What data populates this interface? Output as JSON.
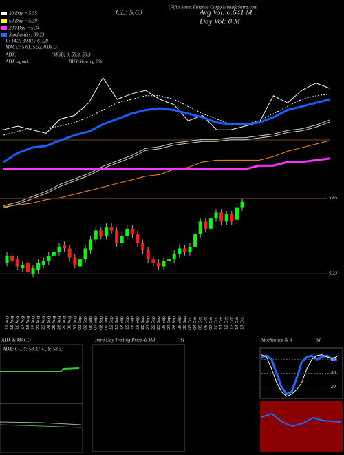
{
  "chart_data": [
    {
      "type": "line",
      "title": "(Fifth Street Finance Corp) MunafaSutra.com",
      "ylim": [
        0,
        100
      ],
      "series": [
        {
          "color": "#ffffff",
          "style": "solid",
          "values": [
            43,
            45,
            43,
            41,
            49,
            51,
            58,
            72,
            60,
            63,
            65,
            60,
            57,
            48,
            51,
            43,
            43,
            45,
            47,
            62,
            58,
            65,
            69,
            66
          ]
        },
        {
          "color": "#ffffff",
          "style": "dotted",
          "values": [
            40,
            42,
            44,
            44,
            45,
            47,
            50,
            54,
            58,
            60,
            62,
            62,
            60,
            56,
            52,
            49,
            46,
            46,
            48,
            52,
            56,
            60,
            62,
            63
          ]
        },
        {
          "color": "#1560ff",
          "style": "thick",
          "values": [
            25,
            30,
            33,
            34,
            37,
            40,
            42,
            46,
            49,
            52,
            54,
            55,
            54,
            52,
            50,
            47,
            46,
            46,
            47,
            50,
            54,
            56,
            58,
            60
          ]
        },
        {
          "color": "#cccccc",
          "style": "double",
          "values": [
            0,
            2,
            5,
            8,
            12,
            15,
            18,
            22,
            25,
            28,
            32,
            33,
            35,
            36,
            37,
            37,
            38,
            38,
            39,
            40,
            42,
            43,
            45,
            48
          ]
        },
        {
          "color": "#ff8c1a",
          "style": "solid",
          "values": [
            0,
            1,
            2,
            4,
            5,
            7,
            9,
            11,
            13,
            15,
            17,
            18,
            21,
            22,
            25,
            26,
            26,
            26,
            26,
            28,
            31,
            33,
            35,
            37
          ]
        },
        {
          "color": "#ff33ff",
          "style": "thick",
          "values": [
            21,
            21,
            21,
            21,
            21,
            21,
            21,
            21,
            21,
            21,
            21,
            21,
            21,
            21,
            21,
            21,
            21,
            21,
            23,
            23,
            25,
            25,
            26,
            27
          ]
        }
      ]
    },
    {
      "type": "candlestick",
      "annotations": [
        "20 Day = 5.55",
        "50 Day = 5.39",
        "200 Day = 5.34",
        "Stochastics: 89.23",
        "R: 14/3: 39.81 / 61.28",
        "MACD: 5.61, 5.52, 0.09 D",
        "ADX:",
        "(MGB) 0, 58.3, 58.3",
        "ADX  signal:",
        "BUY Slowing 0%",
        "CL: 5.63",
        "Avg Vol: 0.641 M",
        "Day Vol: 0   M"
      ],
      "x": [
        "12 Aug",
        "15 Aug",
        "16 Aug",
        "17 Aug",
        "18 Aug",
        "19 Aug",
        "22 Aug",
        "23 Aug",
        "24 Aug",
        "25 Aug",
        "26 Aug",
        "29 Aug",
        "30 Aug",
        "31 Aug",
        "01 Sep",
        "02 Sep",
        "06 Sep",
        "07 Sep",
        "08 Sep",
        "09 Sep",
        "12 Sep",
        "13 Sep",
        "14 Sep",
        "15 Sep",
        "16 Sep",
        "19 Sep",
        "20 Sep",
        "21 Sep",
        "22 Sep",
        "23 Sep",
        "26 Sep",
        "27 Sep",
        "28 Sep",
        "29 Sep",
        "30 Sep",
        "03 Oct",
        "04 Oct",
        "05 Oct",
        "06 Oct",
        "07 Oct",
        "10 Oct",
        "11 Oct",
        "12 Oct",
        "13 Oct",
        "14 Oct",
        "17 Oct"
      ],
      "open": [
        5.29,
        5.33,
        5.31,
        5.26,
        5.29,
        5.23,
        5.25,
        5.28,
        5.3,
        5.33,
        5.35,
        5.39,
        5.37,
        5.32,
        5.27,
        5.31,
        5.36,
        5.42,
        5.47,
        5.44,
        5.49,
        5.47,
        5.4,
        5.44,
        5.48,
        5.45,
        5.4,
        5.36,
        5.31,
        5.29,
        5.27,
        5.3,
        5.31,
        5.34,
        5.37,
        5.35,
        5.38,
        5.45,
        5.52,
        5.48,
        5.54,
        5.57,
        5.52,
        5.56,
        5.53,
        5.6
      ],
      "high": [
        5.35,
        5.35,
        5.33,
        5.3,
        5.31,
        5.28,
        5.31,
        5.32,
        5.35,
        5.37,
        5.4,
        5.41,
        5.39,
        5.34,
        5.33,
        5.39,
        5.44,
        5.49,
        5.49,
        5.51,
        5.51,
        5.49,
        5.46,
        5.5,
        5.5,
        5.47,
        5.42,
        5.38,
        5.33,
        5.31,
        5.32,
        5.33,
        5.36,
        5.39,
        5.39,
        5.4,
        5.47,
        5.54,
        5.54,
        5.56,
        5.59,
        5.59,
        5.58,
        5.58,
        5.62,
        5.65
      ],
      "low": [
        5.27,
        5.28,
        5.25,
        5.24,
        5.2,
        5.21,
        5.23,
        5.26,
        5.28,
        5.31,
        5.33,
        5.35,
        5.3,
        5.26,
        5.25,
        5.29,
        5.34,
        5.4,
        5.42,
        5.42,
        5.45,
        5.38,
        5.38,
        5.42,
        5.43,
        5.38,
        5.34,
        5.29,
        5.27,
        5.25,
        5.25,
        5.28,
        5.29,
        5.32,
        5.33,
        5.33,
        5.36,
        5.43,
        5.46,
        5.46,
        5.52,
        5.5,
        5.5,
        5.5,
        5.51,
        5.58
      ],
      "close": [
        5.33,
        5.3,
        5.27,
        5.28,
        5.24,
        5.26,
        5.29,
        5.3,
        5.33,
        5.35,
        5.38,
        5.37,
        5.32,
        5.28,
        5.31,
        5.37,
        5.42,
        5.47,
        5.44,
        5.49,
        5.47,
        5.4,
        5.44,
        5.48,
        5.45,
        5.4,
        5.36,
        5.31,
        5.29,
        5.27,
        5.3,
        5.31,
        5.34,
        5.37,
        5.35,
        5.38,
        5.45,
        5.52,
        5.48,
        5.54,
        5.57,
        5.52,
        5.56,
        5.52,
        5.6,
        5.63
      ],
      "up_color": "#00ff00",
      "down_color": "#ff1a1a",
      "ylim": [
        5.18,
        6.6
      ],
      "yticks": [
        5.65,
        5.23
      ]
    },
    {
      "type": "panel",
      "title": "ADX  & MACD",
      "annotations": [
        "ADX: 0  -DY: 58.33  +DY: 58.33"
      ]
    },
    {
      "type": "panel",
      "title": "Intra  Day Trading Price  & MR",
      "subtitle": "SI"
    },
    {
      "type": "line",
      "title": "Stochastics & R",
      "subtitle": "SI",
      "ylim": [
        0,
        100
      ],
      "yticks": [
        80,
        50,
        20
      ],
      "series": [
        {
          "color": "#1f6bff",
          "style": "thick",
          "values": [
            85,
            88,
            80,
            50,
            20,
            5,
            10,
            40,
            75,
            85,
            88,
            80,
            85,
            88,
            80,
            80
          ]
        },
        {
          "color": "#ffffff",
          "style": "solid",
          "values": [
            90,
            85,
            60,
            30,
            10,
            0,
            5,
            15,
            30,
            60,
            80,
            88,
            90,
            85,
            82,
            86
          ]
        }
      ]
    }
  ]
}
